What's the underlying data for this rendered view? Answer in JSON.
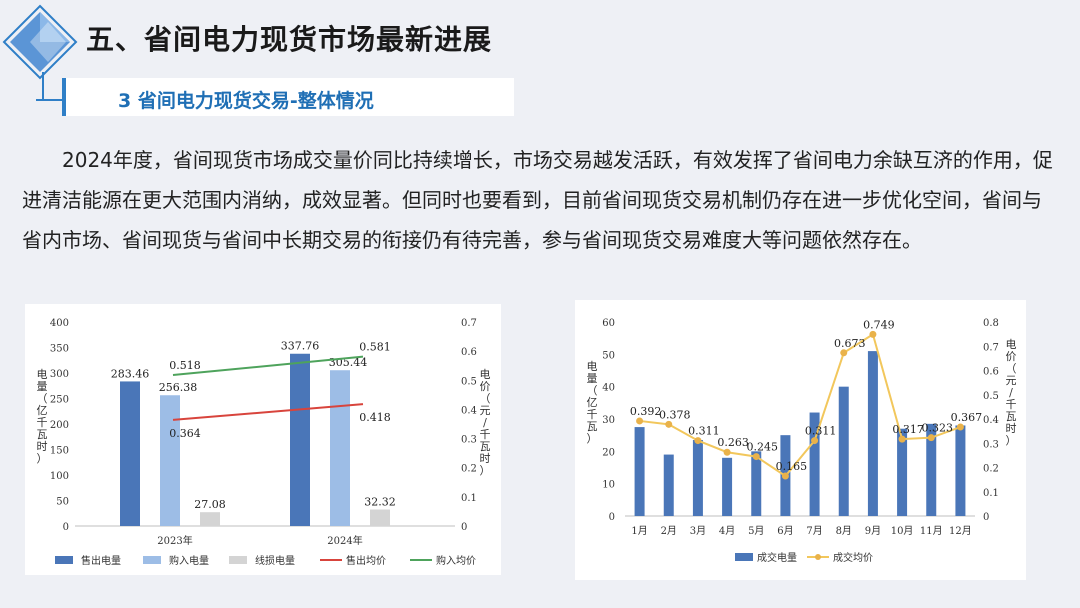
{
  "header": {
    "title": "五、省间电力现货市场最新进展",
    "subtitle": "3 省间电力现货交易-整体情况"
  },
  "body": {
    "paragraph": "2024年度，省间现货市场成交量价同比持续增长，市场交易越发活跃，有效发挥了省间电力余缺互济的作用，促进清洁能源在更大范围内消纳，成效显著。但同时也要看到，目前省间现货交易机制仍存在进一步优化空间，省间与省内市场、省间现货与省间中长期交易的衔接仍有待完善，参与省间现货交易难度大等问题依然存在。"
  },
  "colors": {
    "bar_dark": "#4a76b8",
    "bar_light": "#9dbde6",
    "bar_gray": "#c8c8c8",
    "line_red": "#d8443c",
    "line_green": "#4ea35c",
    "line_gold": "#f2c75c",
    "title": "#1a1a1a",
    "accent": "#1f6fb5"
  },
  "chart_data": [
    {
      "type": "bar",
      "categories": [
        "2023年",
        "2024年"
      ],
      "series": [
        {
          "name": "售出电量",
          "kind": "bar",
          "axis": "left",
          "values": [
            283.46,
            337.76
          ],
          "labels": [
            "283.46",
            "337.76"
          ]
        },
        {
          "name": "购入电量",
          "kind": "bar",
          "axis": "left",
          "values": [
            256.38,
            305.44
          ],
          "labels": [
            "256.38",
            "305.44"
          ]
        },
        {
          "name": "线损电量",
          "kind": "bar",
          "axis": "left",
          "values": [
            27.08,
            32.32
          ],
          "labels": [
            "27.08",
            "32.32"
          ]
        },
        {
          "name": "售出均价",
          "kind": "line",
          "axis": "right",
          "values": [
            0.364,
            0.418
          ],
          "labels": [
            "0.364",
            "0.418"
          ]
        },
        {
          "name": "购入均价",
          "kind": "line",
          "axis": "right",
          "values": [
            0.518,
            0.581
          ],
          "labels": [
            "0.518",
            "0.581"
          ]
        }
      ],
      "ylabel": "电量（亿千瓦时）",
      "ylabel_right": "电价（元/千瓦时）",
      "ylim": [
        0,
        400
      ],
      "ylim_right": [
        0,
        0.7
      ],
      "yticks": [
        "0",
        "50",
        "100",
        "150",
        "200",
        "250",
        "300",
        "350",
        "400"
      ],
      "yticks_right": [
        "0",
        "0.1",
        "0.2",
        "0.3",
        "0.4",
        "0.5",
        "0.6",
        "0.7"
      ],
      "legend_position": "bottom"
    },
    {
      "type": "bar",
      "categories": [
        "1月",
        "2月",
        "3月",
        "4月",
        "5月",
        "6月",
        "7月",
        "8月",
        "9月",
        "10月",
        "11月",
        "12月"
      ],
      "series": [
        {
          "name": "成交电量",
          "kind": "bar",
          "axis": "left",
          "values": [
            27.5,
            19,
            23.5,
            18,
            20,
            25,
            32,
            40,
            51,
            27,
            28.5,
            28
          ]
        },
        {
          "name": "成交均价",
          "kind": "line",
          "axis": "right",
          "values": [
            0.392,
            0.378,
            0.311,
            0.263,
            0.245,
            0.165,
            0.311,
            0.673,
            0.749,
            0.317,
            0.323,
            0.367
          ],
          "labels": [
            "0.392",
            "0.378",
            "0.311",
            "0.263",
            "0.245",
            "0.165",
            "0.311",
            "0.673",
            "0.749",
            "0.317",
            "0.323",
            "0.367"
          ]
        }
      ],
      "ylabel": "电量（亿千瓦）",
      "ylabel_right": "电价（元/千瓦时）",
      "ylim": [
        0,
        60
      ],
      "ylim_right": [
        0,
        0.8
      ],
      "yticks": [
        "0",
        "10",
        "20",
        "30",
        "40",
        "50",
        "60"
      ],
      "yticks_right": [
        "0",
        "0.1",
        "0.2",
        "0.3",
        "0.4",
        "0.5",
        "0.6",
        "0.7",
        "0.8"
      ],
      "legend_position": "bottom"
    }
  ]
}
